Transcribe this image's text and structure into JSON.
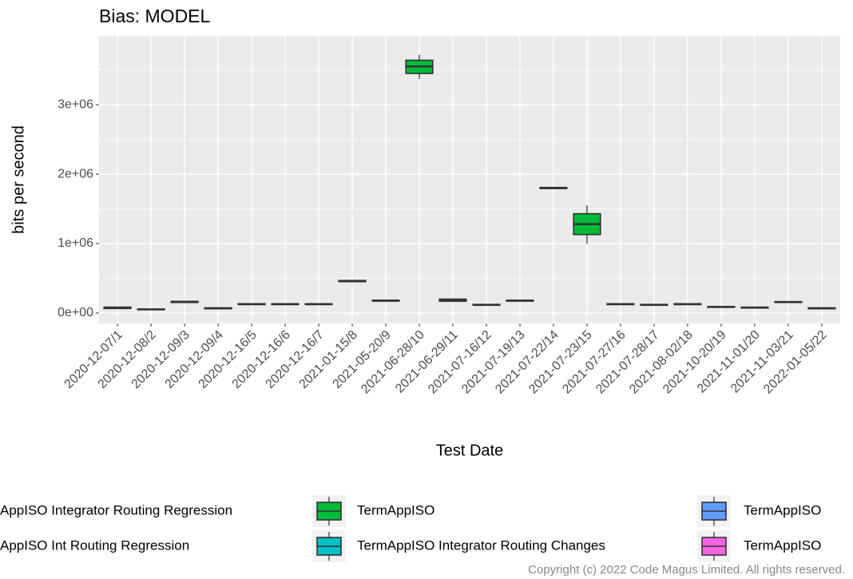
{
  "chart_data": {
    "type": "boxplot",
    "title": "Bias: MODEL",
    "x_label": "Test Date",
    "y_label": "bits per second",
    "categories": [
      "2020-12-07/1",
      "2020-12-08/2",
      "2020-12-09/3",
      "2020-12-09/4",
      "2020-12-16/5",
      "2020-12-16/6",
      "2020-12-16/7",
      "2021-01-15/8",
      "2021-05-20/9",
      "2021-06-28/10",
      "2021-06-29/11",
      "2021-07-16/12",
      "2021-07-19/13",
      "2021-07-22/14",
      "2021-07-23/15",
      "2021-07-27/16",
      "2021-07-28/17",
      "2021-08-02/18",
      "2021-10-20/19",
      "2021-11-01/20",
      "2021-11-03/21",
      "2022-01-05/22"
    ],
    "boxes": [
      {
        "low": 60000,
        "q1": 65000,
        "median": 75000,
        "q3": 85000,
        "high": 90000
      },
      {
        "low": 45000,
        "q1": 48000,
        "median": 52000,
        "q3": 56000,
        "high": 58000
      },
      {
        "low": 150000,
        "q1": 152000,
        "median": 160000,
        "q3": 168000,
        "high": 170000
      },
      {
        "low": 60000,
        "q1": 62000,
        "median": 68000,
        "q3": 74000,
        "high": 76000
      },
      {
        "low": 120000,
        "q1": 122000,
        "median": 128000,
        "q3": 134000,
        "high": 136000
      },
      {
        "low": 120000,
        "q1": 122000,
        "median": 128000,
        "q3": 134000,
        "high": 136000
      },
      {
        "low": 120000,
        "q1": 122000,
        "median": 128000,
        "q3": 134000,
        "high": 136000
      },
      {
        "low": 450000,
        "q1": 452000,
        "median": 460000,
        "q3": 468000,
        "high": 470000
      },
      {
        "low": 170000,
        "q1": 172000,
        "median": 178000,
        "q3": 184000,
        "high": 186000
      },
      {
        "low": 3370000,
        "q1": 3450000,
        "median": 3550000,
        "q3": 3640000,
        "high": 3720000
      },
      {
        "low": 165000,
        "q1": 170000,
        "median": 185000,
        "q3": 200000,
        "high": 210000
      },
      {
        "low": 110000,
        "q1": 112000,
        "median": 118000,
        "q3": 124000,
        "high": 126000
      },
      {
        "low": 170000,
        "q1": 172000,
        "median": 178000,
        "q3": 184000,
        "high": 186000
      },
      {
        "low": 1790000,
        "q1": 1792000,
        "median": 1800000,
        "q3": 1808000,
        "high": 1810000
      },
      {
        "low": 1000000,
        "q1": 1130000,
        "median": 1280000,
        "q3": 1430000,
        "high": 1550000
      },
      {
        "low": 120000,
        "q1": 122000,
        "median": 128000,
        "q3": 134000,
        "high": 136000
      },
      {
        "low": 110000,
        "q1": 112000,
        "median": 118000,
        "q3": 124000,
        "high": 126000
      },
      {
        "low": 120000,
        "q1": 122000,
        "median": 128000,
        "q3": 134000,
        "high": 136000
      },
      {
        "low": 80000,
        "q1": 82000,
        "median": 88000,
        "q3": 94000,
        "high": 96000
      },
      {
        "low": 70000,
        "q1": 72000,
        "median": 78000,
        "q3": 84000,
        "high": 86000
      },
      {
        "low": 150000,
        "q1": 152000,
        "median": 158000,
        "q3": 164000,
        "high": 166000
      },
      {
        "low": 60000,
        "q1": 62000,
        "median": 68000,
        "q3": 74000,
        "high": 76000
      }
    ],
    "box_color": "#00ba38",
    "series": [
      {
        "name": "AppISO Integrator Routing Regression",
        "color": "#f8766d"
      },
      {
        "name": "AppISO Int Routing Regression",
        "color": "#b79f00"
      },
      {
        "name": "TermAppISO",
        "color": "#00ba38"
      },
      {
        "name": "TermAppISO Integrator Routing Changes",
        "color": "#00bfc4"
      },
      {
        "name": "TermAppISO",
        "color": "#619cff"
      },
      {
        "name": "TermAppISO",
        "color": "#f564e3"
      }
    ],
    "ylim": [
      -150000,
      3990000
    ],
    "yticks": [
      {
        "value": 0,
        "label": "0e+00"
      },
      {
        "value": 1000000,
        "label": "1e+06"
      },
      {
        "value": 2000000,
        "label": "2e+06"
      },
      {
        "value": 3000000,
        "label": "3e+06"
      }
    ],
    "grid": true,
    "legend": "bottom",
    "copyright": "Copyright (c) 2022 Code Magus Limited. All rights reserved."
  }
}
